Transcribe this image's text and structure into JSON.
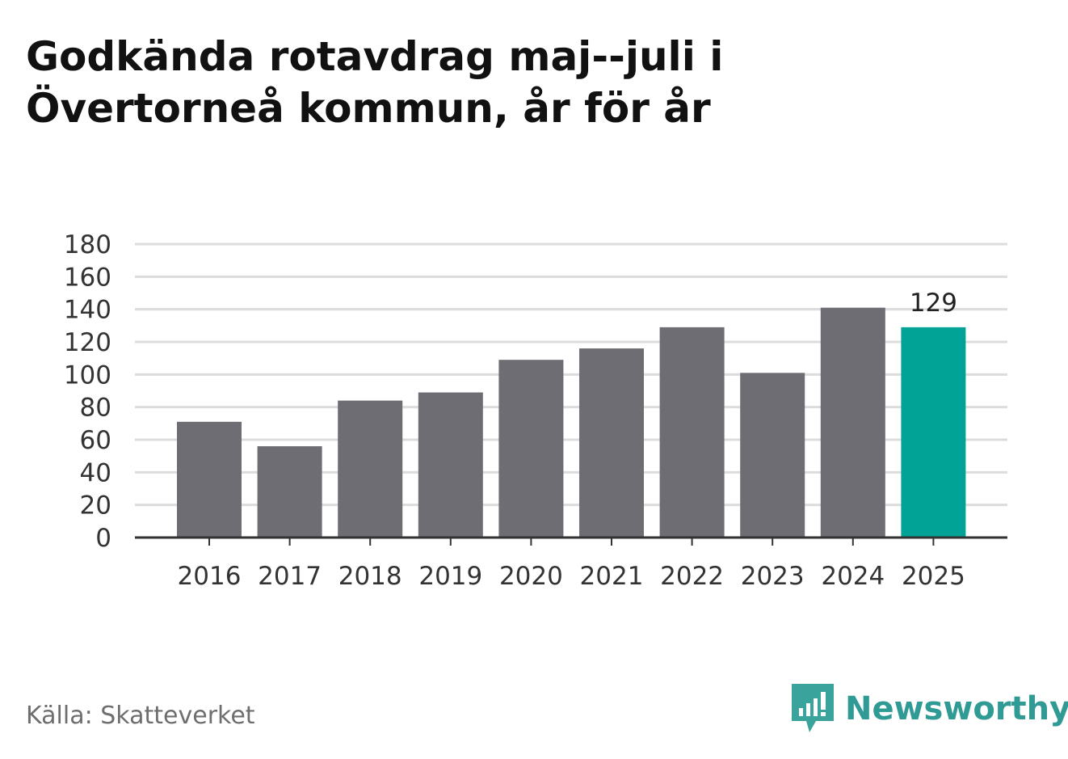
{
  "title": {
    "line1": "Godkända rotavdrag maj--juli i",
    "line2": "Övertorneå kommun, år för år"
  },
  "source": "Källa: Skatteverket",
  "brand": {
    "name": "Newsworthy",
    "icon": "newsworthy-logo-icon",
    "color": "#2f9b94"
  },
  "colors": {
    "bar": "#6e6d73",
    "highlight": "#00a396",
    "grid": "#dcdcdc",
    "axis": "#333333"
  },
  "chart_data": {
    "type": "bar",
    "categories": [
      "2016",
      "2017",
      "2018",
      "2019",
      "2020",
      "2021",
      "2022",
      "2023",
      "2024",
      "2025"
    ],
    "values": [
      71,
      56,
      84,
      89,
      109,
      116,
      129,
      101,
      141,
      129
    ],
    "highlight_index": 9,
    "data_labels": [
      {
        "category": "2025",
        "text": "129"
      }
    ],
    "ylim": [
      0,
      180
    ],
    "yticks": [
      0,
      20,
      40,
      60,
      80,
      100,
      120,
      140,
      160,
      180
    ],
    "grid": true,
    "legend": "none",
    "xlabel": "",
    "ylabel": ""
  }
}
